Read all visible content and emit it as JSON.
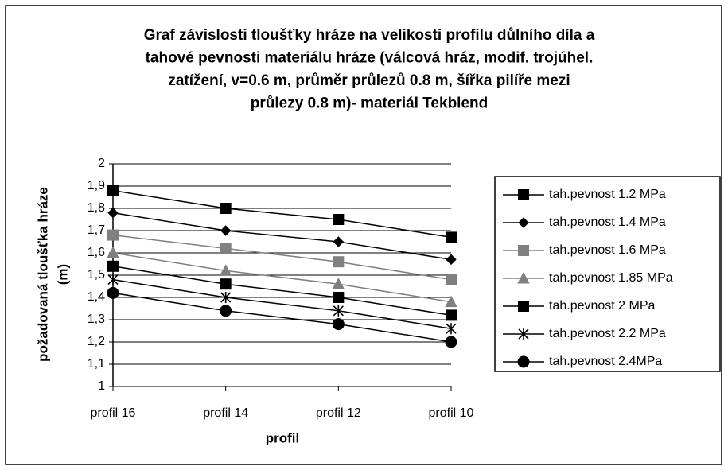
{
  "chart_data": {
    "type": "line",
    "title": [
      "Graf závislosti tloušťky hráze na velikosti profilu důlního díla a",
      "tahové pevnosti materiálu hráze (válcová hráz, modif. trojúhel.",
      "zatížení, v=0.6 m, průměr průlezů 0.8 m, šířka pilíře mezi",
      "průlezy 0.8 m)- materiál Tekblend"
    ],
    "ylabel": [
      "požadovaná tloušťka hráze",
      "(m)"
    ],
    "xlabel": "profil",
    "categories": [
      "profil 16",
      "profil 14",
      "profil 12",
      "profil 10"
    ],
    "ylim": [
      1,
      2
    ],
    "yticks": [
      1,
      {
        "value": 1.1,
        "label": "1,1"
      },
      {
        "value": 1.2,
        "label": "1,2"
      },
      {
        "value": 1.3,
        "label": "1,3"
      },
      {
        "value": 1.4,
        "label": "1,4"
      },
      {
        "value": 1.5,
        "label": "1,5"
      },
      {
        "value": 1.6,
        "label": "1,6"
      },
      {
        "value": 1.7,
        "label": "1,7"
      },
      {
        "value": 1.8,
        "label": "1,8"
      },
      {
        "value": 1.9,
        "label": "1,9"
      },
      2
    ],
    "grid": true,
    "legend": "right",
    "series": [
      {
        "name": "tah.pevnost 1.2 MPa",
        "color": "#000000",
        "marker": "square",
        "values": [
          1.88,
          1.8,
          1.75,
          1.67
        ]
      },
      {
        "name": "tah.pevnost 1.4 MPa",
        "color": "#000000",
        "marker": "diamond",
        "values": [
          1.78,
          1.7,
          1.65,
          1.57
        ]
      },
      {
        "name": "tah.pevnost 1.6 MPa",
        "color": "#808080",
        "marker": "square",
        "values": [
          1.68,
          1.62,
          1.56,
          1.48
        ]
      },
      {
        "name": "tah.pevnost 1.85 MPa",
        "color": "#808080",
        "marker": "triangle",
        "values": [
          1.6,
          1.52,
          1.46,
          1.38
        ]
      },
      {
        "name": "tah.pevnost 2 MPa",
        "color": "#000000",
        "marker": "square",
        "values": [
          1.54,
          1.46,
          1.4,
          1.32
        ]
      },
      {
        "name": "tah.pevnost 2.2 MPa",
        "color": "#000000",
        "marker": "asterisk",
        "values": [
          1.48,
          1.4,
          1.34,
          1.26
        ]
      },
      {
        "name": "tah.pevnost 2.4MPa",
        "color": "#000000",
        "marker": "circle",
        "values": [
          1.42,
          1.34,
          1.28,
          1.2
        ]
      }
    ]
  }
}
